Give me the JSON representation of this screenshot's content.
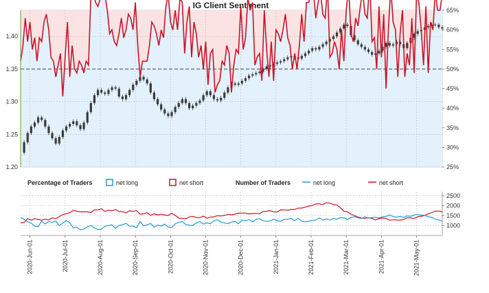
{
  "chart_data": {
    "type": "line",
    "title": "IG Client Sentiment",
    "x_tick_labels": [
      "2020-Jun-01",
      "2020-Jul-01",
      "2020-Aug-01",
      "2020-Sep-01",
      "2020-Oct-01",
      "2020-Nov-01",
      "2020-Dec-01",
      "2021-Jan-01",
      "2021-Feb-01",
      "2021-Mar-01",
      "2021-Apr-01",
      "2021-May-01"
    ],
    "price_axis": {
      "ticks": [
        "1.20",
        "1.25",
        "1.30",
        "1.35",
        "1.40"
      ],
      "ylim": [
        1.2,
        1.44
      ]
    },
    "pct_axis": {
      "ticks": [
        "25%",
        "30%",
        "35%",
        "40%",
        "45%",
        "50%",
        "55%",
        "60%",
        "65%"
      ],
      "ylim": [
        25,
        65
      ]
    },
    "count_axis": {
      "ticks": [
        "1000",
        "1500",
        "2000",
        "2500"
      ],
      "ylim": [
        500,
        2700
      ]
    },
    "legend": {
      "pct_title": "Percentage of Traders",
      "pct_long": "net long",
      "pct_short": "net short",
      "num_title": "Number of Traders",
      "num_long": "net long",
      "num_short": "net short"
    },
    "colors": {
      "net_long": "#1e9ad6",
      "net_short": "#cc1126",
      "long_fill": "#e2f1fb",
      "short_fill": "#fbe3e3",
      "candles": "#3a3a3a",
      "midline": "#444444",
      "grid": "#b8b8b8"
    },
    "price_series": {
      "x": [
        0,
        3,
        6,
        9,
        12,
        15,
        18,
        21,
        24,
        27,
        30,
        33,
        36,
        39,
        42,
        45,
        48,
        51,
        54,
        57,
        60,
        63,
        66,
        69,
        72,
        75,
        78,
        81,
        84,
        87,
        90,
        93,
        96,
        99,
        102,
        105,
        108,
        111,
        114,
        117,
        120,
        123,
        126,
        129,
        132,
        135,
        138,
        141,
        144,
        147,
        150,
        153,
        156,
        159,
        162,
        165,
        168,
        171,
        174,
        177,
        180,
        183,
        186,
        189,
        192,
        195,
        198,
        201,
        204,
        207,
        210,
        213,
        216,
        219,
        222,
        225,
        228,
        231,
        234,
        237,
        240,
        243,
        246,
        249,
        252,
        255,
        258,
        261,
        264,
        267,
        270,
        273,
        276,
        279,
        282,
        285,
        288,
        291,
        294,
        297,
        300,
        303,
        306,
        309,
        312,
        315,
        318,
        321,
        324,
        327,
        330,
        333,
        336,
        339,
        342,
        345,
        348,
        351,
        354,
        357,
        360
      ],
      "close": [
        1.222,
        1.238,
        1.252,
        1.262,
        1.268,
        1.276,
        1.272,
        1.262,
        1.252,
        1.244,
        1.236,
        1.246,
        1.256,
        1.262,
        1.266,
        1.27,
        1.264,
        1.258,
        1.268,
        1.284,
        1.298,
        1.31,
        1.318,
        1.314,
        1.312,
        1.318,
        1.322,
        1.32,
        1.308,
        1.304,
        1.31,
        1.318,
        1.326,
        1.332,
        1.338,
        1.334,
        1.328,
        1.314,
        1.304,
        1.296,
        1.288,
        1.282,
        1.278,
        1.284,
        1.292,
        1.298,
        1.304,
        1.298,
        1.29,
        1.294,
        1.298,
        1.302,
        1.31,
        1.316,
        1.31,
        1.304,
        1.302,
        1.306,
        1.314,
        1.322,
        1.328,
        1.326,
        1.328,
        1.332,
        1.336,
        1.34,
        1.342,
        1.344,
        1.346,
        1.35,
        1.354,
        1.356,
        1.358,
        1.36,
        1.362,
        1.365,
        1.368,
        1.37,
        1.368,
        1.366,
        1.37,
        1.374,
        1.378,
        1.382,
        1.38,
        1.384,
        1.388,
        1.392,
        1.396,
        1.4,
        1.406,
        1.412,
        1.418,
        1.416,
        1.402,
        1.394,
        1.388,
        1.384,
        1.38,
        1.376,
        1.372,
        1.374,
        1.378,
        1.384,
        1.39,
        1.386,
        1.388,
        1.392,
        1.388,
        1.382,
        1.39,
        1.398,
        1.404,
        1.408,
        1.41,
        1.414,
        1.416,
        1.418,
        1.418,
        1.414,
        1.412
      ]
    },
    "pct_series": {
      "x": [
        0,
        2,
        4,
        6,
        8,
        10,
        12,
        14,
        16,
        18,
        20,
        22,
        24,
        26,
        28,
        30,
        32,
        34,
        36,
        38,
        40,
        42,
        44,
        46,
        48,
        50,
        52,
        54,
        56,
        58,
        60,
        62,
        64,
        66,
        68,
        70,
        72,
        74,
        76,
        78,
        80,
        82,
        84,
        86,
        88,
        90,
        92,
        94,
        96,
        98,
        100,
        102,
        104,
        106,
        108,
        110,
        112,
        114,
        116,
        118,
        120,
        122,
        124,
        126,
        128,
        130,
        132,
        134,
        136,
        138,
        140,
        142,
        144,
        146,
        148,
        150,
        152,
        154,
        156,
        158,
        160,
        162,
        164,
        166,
        168,
        170,
        172,
        174,
        176,
        178,
        180,
        182,
        184,
        186,
        188,
        190,
        192,
        194,
        196,
        198,
        200,
        202,
        204,
        206,
        208,
        210,
        212,
        214,
        216,
        218,
        220,
        222,
        224,
        226,
        228,
        230,
        232,
        234,
        236,
        238,
        240,
        242,
        244,
        246,
        248,
        250,
        252,
        254,
        256,
        258,
        260,
        262,
        264,
        266,
        268,
        270,
        272,
        274,
        276,
        278,
        280,
        282,
        284,
        286,
        288,
        290,
        292,
        294,
        296,
        298,
        300,
        302,
        304,
        306,
        308,
        310,
        312,
        314,
        316,
        318,
        320,
        322,
        324,
        326,
        328,
        330,
        332,
        334,
        336,
        338,
        340,
        342,
        344,
        346,
        348,
        350,
        352,
        354,
        356,
        358,
        360
      ],
      "net_long": [
        52,
        56,
        63,
        57,
        62,
        55,
        58,
        52,
        58,
        57,
        62,
        64,
        60,
        53,
        52,
        48,
        51,
        54,
        43,
        53,
        62,
        48,
        56,
        50,
        49,
        52,
        51,
        49,
        52,
        51,
        69,
        70,
        67,
        66,
        68,
        71,
        69,
        65,
        59,
        60,
        57,
        56,
        59,
        63,
        58,
        60,
        64,
        63,
        60,
        67,
        56,
        48,
        52,
        52,
        52,
        56,
        62,
        61,
        59,
        56,
        60,
        58,
        66,
        69,
        62,
        60,
        65,
        60,
        68,
        67,
        54,
        62,
        66,
        53,
        62,
        59,
        53,
        56,
        50,
        57,
        46,
        54,
        55,
        44,
        46,
        47,
        52,
        51,
        56,
        54,
        44,
        51,
        55,
        54,
        66,
        55,
        58,
        68,
        65,
        67,
        51,
        53,
        54,
        47,
        65,
        55,
        48,
        57,
        47,
        60,
        59,
        57,
        60,
        64,
        58,
        56,
        50,
        54,
        50,
        56,
        64,
        57,
        67,
        67,
        70,
        70,
        63,
        67,
        70,
        64,
        63,
        71,
        53,
        54,
        57,
        55,
        50,
        60,
        52,
        65,
        71,
        59,
        57,
        63,
        61,
        66,
        70,
        64,
        63,
        73,
        57,
        58,
        50,
        66,
        53,
        64,
        45,
        60,
        71,
        62,
        60,
        48,
        59,
        65,
        48,
        54,
        51,
        63,
        49,
        69,
        67,
        60,
        51,
        66,
        49,
        62,
        60,
        70,
        65,
        65,
        69
      ]
    },
    "count_series": {
      "x": [
        0,
        3,
        6,
        9,
        12,
        15,
        18,
        21,
        24,
        27,
        30,
        33,
        36,
        39,
        42,
        45,
        48,
        51,
        54,
        57,
        60,
        63,
        66,
        69,
        72,
        75,
        78,
        81,
        84,
        87,
        90,
        93,
        96,
        99,
        102,
        105,
        108,
        111,
        114,
        117,
        120,
        123,
        126,
        129,
        132,
        135,
        138,
        141,
        144,
        147,
        150,
        153,
        156,
        159,
        162,
        165,
        168,
        171,
        174,
        177,
        180,
        183,
        186,
        189,
        192,
        195,
        198,
        201,
        204,
        207,
        210,
        213,
        216,
        219,
        222,
        225,
        228,
        231,
        234,
        237,
        240,
        243,
        246,
        249,
        252,
        255,
        258,
        261,
        264,
        267,
        270,
        273,
        276,
        279,
        282,
        285,
        288,
        291,
        294,
        297,
        300,
        303,
        306,
        309,
        312,
        315,
        318,
        321,
        324,
        327,
        330,
        333,
        336,
        339,
        342,
        345,
        348,
        351,
        354,
        357,
        360
      ],
      "net_long": [
        1400,
        1313,
        1187,
        1121,
        972,
        940,
        1227,
        1079,
        1200,
        1159,
        1221,
        999,
        1125,
        1254,
        1138,
        877,
        916,
        777,
        819,
        932,
        1005,
        886,
        797,
        814,
        960,
        1003,
        1036,
        856,
        1004,
        1039,
        1112,
        971,
        970,
        891,
        1208,
        990,
        1032,
        1109,
        917,
        1029,
        971,
        1076,
        921,
        897,
        1085,
        1165,
        1204,
        1052,
        1017,
        1007,
        1129,
        1206,
        1079,
        1137,
        1085,
        1238,
        1290,
        1174,
        1128,
        1097,
        1167,
        1210,
        1095,
        1270,
        1236,
        1297,
        1185,
        1312,
        1341,
        1232,
        1216,
        1223,
        1321,
        1240,
        1220,
        1315,
        1315,
        1348,
        1244,
        1364,
        1216,
        1191,
        1218,
        1249,
        1281,
        1381,
        1277,
        1331,
        1278,
        1360,
        1319,
        1396,
        1393,
        1301,
        1406,
        1438,
        1392,
        1355,
        1435,
        1373,
        1400,
        1419,
        1387,
        1436,
        1454,
        1536,
        1441,
        1422,
        1451,
        1409,
        1483,
        1460,
        1533,
        1560,
        1518,
        1514,
        1438,
        1410,
        1321,
        1282,
        1216
      ],
      "net_short": [
        1137,
        1152,
        1342,
        1269,
        1334,
        1312,
        1271,
        1323,
        1288,
        1384,
        1347,
        1444,
        1553,
        1591,
        1647,
        1765,
        1718,
        1685,
        1688,
        1688,
        1653,
        1786,
        1781,
        1845,
        1710,
        1770,
        1745,
        1806,
        1706,
        1698,
        1636,
        1741,
        1711,
        1752,
        1564,
        1585,
        1647,
        1513,
        1585,
        1529,
        1562,
        1529,
        1501,
        1621,
        1510,
        1381,
        1357,
        1339,
        1432,
        1455,
        1408,
        1398,
        1469,
        1371,
        1420,
        1432,
        1497,
        1479,
        1511,
        1558,
        1533,
        1568,
        1621,
        1625,
        1624,
        1582,
        1603,
        1612,
        1591,
        1704,
        1718,
        1743,
        1694,
        1678,
        1789,
        1782,
        1773,
        1805,
        1810,
        1874,
        1874,
        1930,
        1979,
        2006,
        2080,
        2093,
        2050,
        2144,
        2122,
        2050,
        2040,
        1900,
        1724,
        1682,
        1566,
        1502,
        1423,
        1382,
        1352,
        1391,
        1357,
        1286,
        1341,
        1381,
        1355,
        1262,
        1299,
        1282,
        1273,
        1308,
        1388,
        1384,
        1356,
        1438,
        1462,
        1507,
        1587,
        1652,
        1728,
        1728,
        1699
      ]
    }
  }
}
